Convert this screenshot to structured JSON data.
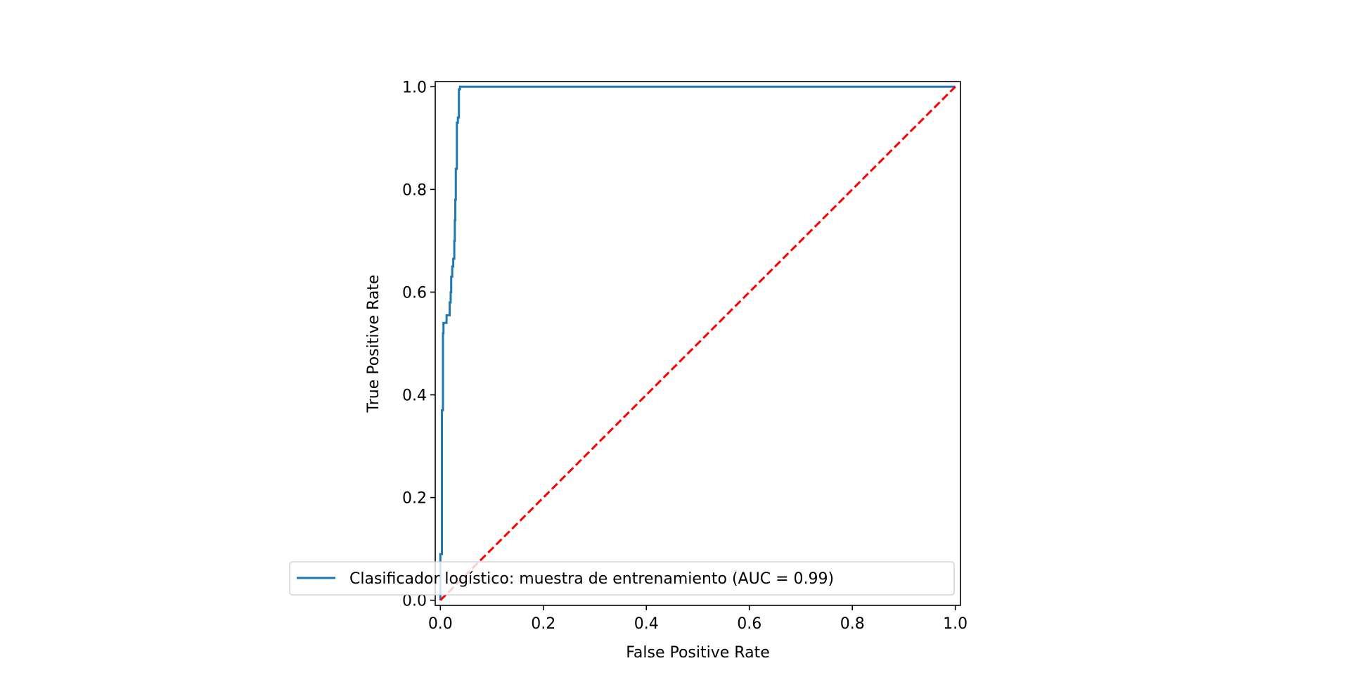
{
  "chart_data": {
    "type": "line",
    "title": "",
    "xlabel": "False Positive Rate",
    "ylabel": "True Positive Rate",
    "xlim": [
      -0.01,
      1.01
    ],
    "ylim": [
      -0.01,
      1.01
    ],
    "x_ticks": [
      0.0,
      0.2,
      0.4,
      0.6,
      0.8,
      1.0
    ],
    "y_ticks": [
      0.0,
      0.2,
      0.4,
      0.6,
      0.8,
      1.0
    ],
    "x_tick_labels": [
      "0.0",
      "0.2",
      "0.4",
      "0.6",
      "0.8",
      "1.0"
    ],
    "y_tick_labels": [
      "0.0",
      "0.2",
      "0.4",
      "0.6",
      "0.8",
      "1.0"
    ],
    "grid": false,
    "legend_position": "lower-right",
    "series": [
      {
        "name": "Clasificador logístico: muestra de entrenamiento (AUC = 0.99)",
        "color": "#1f77b4",
        "style": "solid",
        "points": [
          [
            0.0,
            0.0
          ],
          [
            0.0,
            0.09
          ],
          [
            0.003,
            0.09
          ],
          [
            0.003,
            0.37
          ],
          [
            0.005,
            0.37
          ],
          [
            0.005,
            0.52
          ],
          [
            0.006,
            0.52
          ],
          [
            0.006,
            0.54
          ],
          [
            0.012,
            0.54
          ],
          [
            0.012,
            0.555
          ],
          [
            0.018,
            0.555
          ],
          [
            0.018,
            0.58
          ],
          [
            0.02,
            0.58
          ],
          [
            0.02,
            0.6
          ],
          [
            0.021,
            0.6
          ],
          [
            0.021,
            0.63
          ],
          [
            0.023,
            0.63
          ],
          [
            0.023,
            0.65
          ],
          [
            0.025,
            0.65
          ],
          [
            0.025,
            0.665
          ],
          [
            0.027,
            0.665
          ],
          [
            0.027,
            0.7
          ],
          [
            0.028,
            0.7
          ],
          [
            0.028,
            0.74
          ],
          [
            0.029,
            0.74
          ],
          [
            0.029,
            0.78
          ],
          [
            0.03,
            0.78
          ],
          [
            0.03,
            0.84
          ],
          [
            0.032,
            0.84
          ],
          [
            0.032,
            0.93
          ],
          [
            0.034,
            0.93
          ],
          [
            0.034,
            0.94
          ],
          [
            0.036,
            0.94
          ],
          [
            0.036,
            0.995
          ],
          [
            0.038,
            0.995
          ],
          [
            0.038,
            1.0
          ],
          [
            1.0,
            1.0
          ]
        ]
      },
      {
        "name": "",
        "color": "#ff0000",
        "style": "dashed",
        "points": [
          [
            0.0,
            0.0
          ],
          [
            1.0,
            1.0
          ]
        ]
      }
    ]
  }
}
